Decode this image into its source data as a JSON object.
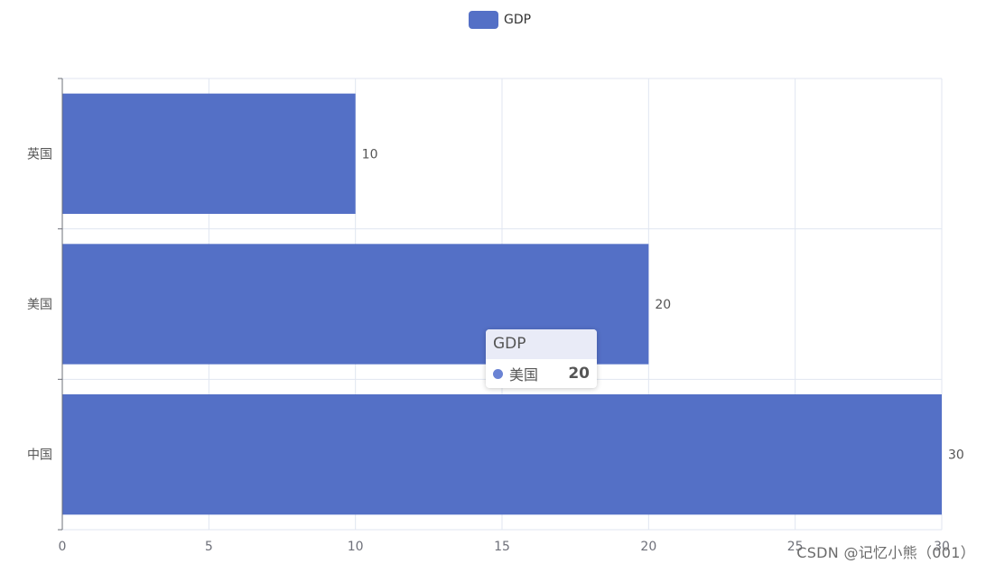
{
  "legend": {
    "label": "GDP",
    "color": "#5470c6"
  },
  "chart_data": {
    "type": "bar",
    "orientation": "horizontal",
    "categories": [
      "英国",
      "美国",
      "中国"
    ],
    "series": [
      {
        "name": "GDP",
        "values": [
          10,
          20,
          30
        ]
      }
    ],
    "data_labels": [
      "10",
      "20",
      "30"
    ],
    "xlim": [
      0,
      30
    ],
    "x_ticks": [
      "0",
      "5",
      "10",
      "15",
      "20",
      "25",
      "30"
    ],
    "grid": true,
    "legend_position": "top-center",
    "bar_color": "#5470c6",
    "gridline_color": "#e0e6f1"
  },
  "tooltip": {
    "title": "GDP",
    "item_label": "美国",
    "item_value": "20",
    "dot_color": "#6a83d4"
  },
  "watermark": "CSDN @记忆小熊（001）"
}
